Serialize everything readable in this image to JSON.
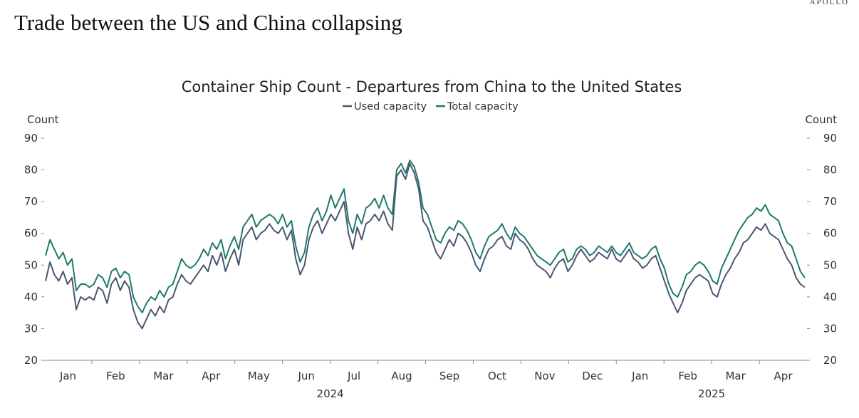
{
  "brand": "APOLLO",
  "headline": "Trade between the US and China collapsing",
  "chart_data": {
    "type": "line",
    "title": "Container Ship Count - Departures from China to the United States",
    "ylabel_left": "Count",
    "ylabel_right": "Count",
    "ylim": [
      20,
      90
    ],
    "yticks": [
      20,
      30,
      40,
      50,
      60,
      70,
      80,
      90
    ],
    "month_ticks": [
      "Jan",
      "Feb",
      "Mar",
      "Apr",
      "May",
      "Jun",
      "Jul",
      "Aug",
      "Sep",
      "Oct",
      "Nov",
      "Dec",
      "Jan",
      "Feb",
      "Mar",
      "Apr"
    ],
    "year_labels": [
      "2024",
      "2025"
    ],
    "colors": {
      "used": "#4a5672",
      "total": "#1f7a68"
    },
    "series": [
      {
        "name": "Used capacity",
        "key": "used",
        "values": [
          45,
          51,
          47,
          45,
          48,
          44,
          46,
          36,
          40,
          39,
          40,
          39,
          43,
          42,
          38,
          44,
          46,
          42,
          45,
          43,
          36,
          32,
          30,
          33,
          36,
          34,
          37,
          35,
          39,
          40,
          44,
          47,
          45,
          44,
          46,
          48,
          50,
          48,
          53,
          50,
          54,
          48,
          52,
          55,
          50,
          58,
          60,
          62,
          58,
          60,
          61,
          63,
          61,
          60,
          62,
          58,
          61,
          52,
          47,
          50,
          58,
          62,
          64,
          60,
          63,
          66,
          64,
          67,
          70,
          60,
          55,
          62,
          58,
          63,
          64,
          66,
          64,
          67,
          63,
          61,
          78,
          80,
          77,
          82,
          79,
          74,
          64,
          62,
          58,
          54,
          52,
          55,
          58,
          56,
          60,
          59,
          57,
          54,
          50,
          48,
          52,
          55,
          56,
          58,
          59,
          56,
          55,
          60,
          58,
          57,
          55,
          52,
          50,
          49,
          48,
          46,
          49,
          51,
          52,
          48,
          50,
          53,
          55,
          53,
          51,
          52,
          54,
          53,
          52,
          55,
          52,
          51,
          53,
          55,
          52,
          51,
          49,
          50,
          52,
          53,
          49,
          45,
          41,
          38,
          35,
          38,
          42,
          44,
          46,
          47,
          46,
          45,
          41,
          40,
          44,
          47,
          49,
          52,
          54,
          57,
          58,
          60,
          62,
          61,
          63,
          60,
          59,
          58,
          55,
          52,
          50,
          46,
          44,
          43
        ]
      },
      {
        "name": "Total capacity",
        "key": "total",
        "values": [
          53,
          58,
          55,
          52,
          54,
          50,
          52,
          42,
          44,
          44,
          43,
          44,
          47,
          46,
          43,
          48,
          49,
          46,
          48,
          47,
          40,
          37,
          35,
          38,
          40,
          39,
          42,
          40,
          43,
          44,
          48,
          52,
          50,
          49,
          50,
          52,
          55,
          53,
          57,
          55,
          58,
          52,
          56,
          59,
          55,
          62,
          64,
          66,
          62,
          64,
          65,
          66,
          65,
          63,
          66,
          62,
          64,
          56,
          51,
          54,
          62,
          66,
          68,
          64,
          67,
          72,
          68,
          71,
          74,
          64,
          60,
          66,
          63,
          68,
          69,
          71,
          68,
          72,
          68,
          66,
          80,
          82,
          79,
          83,
          81,
          76,
          68,
          66,
          62,
          58,
          57,
          60,
          62,
          61,
          64,
          63,
          61,
          58,
          54,
          52,
          56,
          59,
          60,
          61,
          63,
          60,
          58,
          62,
          60,
          59,
          57,
          55,
          53,
          52,
          51,
          50,
          52,
          54,
          55,
          51,
          52,
          55,
          56,
          55,
          53,
          54,
          56,
          55,
          54,
          56,
          54,
          53,
          55,
          57,
          54,
          53,
          52,
          53,
          55,
          56,
          52,
          49,
          44,
          41,
          40,
          43,
          47,
          48,
          50,
          51,
          50,
          48,
          45,
          44,
          49,
          52,
          55,
          58,
          61,
          63,
          65,
          66,
          68,
          67,
          69,
          66,
          65,
          64,
          60,
          57,
          56,
          52,
          48,
          46
        ]
      }
    ]
  }
}
